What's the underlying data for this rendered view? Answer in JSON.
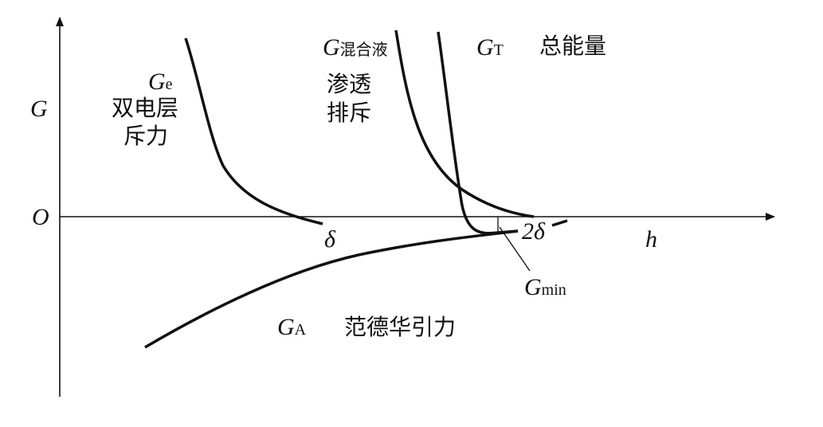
{
  "axes": {
    "y_label": "G",
    "x_label": "h",
    "origin": "O"
  },
  "ticks": {
    "delta": "δ",
    "two_delta": "2δ"
  },
  "curves": {
    "Ge": {
      "symbol": "G",
      "subscript": "e",
      "desc_line1": "双电层",
      "desc_line2": "斥力"
    },
    "Gmix": {
      "symbol": "G",
      "subscript": "混合液",
      "desc_line1": "渗透",
      "desc_line2": "排斥"
    },
    "GT": {
      "symbol": "G",
      "subscript": "T",
      "desc": "总能量"
    },
    "GA": {
      "symbol": "G",
      "subscript": "A",
      "desc": "范德华引力"
    },
    "Gmin": {
      "symbol": "G",
      "subscript": "min"
    }
  },
  "colors": {
    "ink": "#111111",
    "background": "#ffffff"
  }
}
